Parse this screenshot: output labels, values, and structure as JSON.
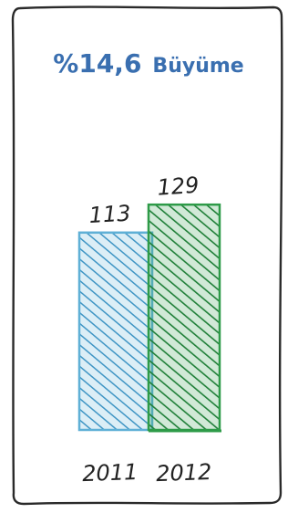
{
  "title": {
    "growth_value": "%14,6",
    "growth_label": "Büyüme"
  },
  "colors": {
    "title": "#3a6fb0",
    "frame": "#2a2a2a",
    "bar_2011": "#5fb0d6",
    "bar_2012": "#2e9b48",
    "text": "#222222"
  },
  "chart_data": {
    "type": "bar",
    "categories": [
      "2011",
      "2012"
    ],
    "values": [
      113,
      129
    ],
    "data_labels": [
      "113",
      "129"
    ],
    "title": "%14,6 Büyüme",
    "xlabel": "",
    "ylabel": "",
    "ylim": [
      0,
      150
    ],
    "grid": false,
    "legend": "none",
    "style": "hand-drawn hatched bars"
  }
}
